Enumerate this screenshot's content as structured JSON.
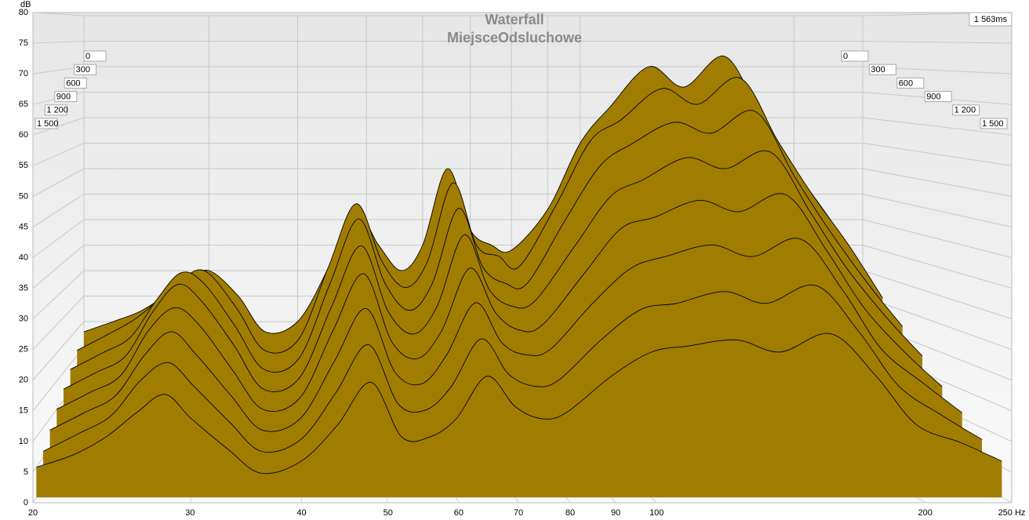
{
  "chart_data": {
    "type": "waterfall",
    "title": "Waterfall",
    "subtitle": "MiejsceOdsluchowe",
    "y_label": "dB",
    "time_label": "1 563ms",
    "color": "#a07d00",
    "log_x": true,
    "grid": true,
    "x": [
      20,
      22,
      24,
      26,
      28,
      30,
      33,
      36,
      40,
      44,
      48,
      52,
      56,
      60,
      65,
      70,
      75,
      80,
      90,
      100,
      110,
      125,
      140,
      160,
      180,
      200,
      225,
      250
    ],
    "xlim": [
      20,
      250
    ],
    "xticks": [
      20,
      30,
      40,
      50,
      60,
      70,
      80,
      90,
      100,
      200,
      {
        "value": 250,
        "label": "250 Hz"
      }
    ],
    "ylim": [
      0,
      80
    ],
    "yticks": [
      0,
      5,
      10,
      15,
      20,
      25,
      30,
      35,
      40,
      45,
      50,
      55,
      60,
      65,
      70,
      75,
      80
    ],
    "zlim": [
      0,
      1500
    ],
    "zticks": [
      0,
      300,
      600,
      900,
      {
        "value": 1200,
        "label": "1 200"
      },
      {
        "value": 1500,
        "label": "1 500"
      }
    ],
    "series": [
      {
        "time": 0,
        "values": [
          18,
          20,
          22,
          25,
          28,
          30,
          25,
          18,
          20,
          30,
          42,
          35,
          30,
          35,
          50,
          38,
          35,
          34,
          42,
          55,
          62,
          70,
          66,
          72,
          60,
          50,
          40,
          30
        ]
      },
      {
        "time": 200,
        "values": [
          16,
          19,
          22,
          26,
          30,
          31,
          24,
          16,
          18,
          32,
          44,
          33,
          28,
          33,
          48,
          36,
          34,
          32,
          44,
          56,
          60,
          66,
          63,
          68,
          56,
          46,
          36,
          26
        ]
      },
      {
        "time": 400,
        "values": [
          14,
          17,
          20,
          27,
          32,
          30,
          22,
          14,
          16,
          30,
          42,
          30,
          25,
          30,
          44,
          33,
          30,
          30,
          42,
          52,
          56,
          60,
          58,
          62,
          50,
          40,
          30,
          22
        ]
      },
      {
        "time": 600,
        "values": [
          12,
          15,
          18,
          26,
          31,
          28,
          20,
          12,
          14,
          27,
          38,
          26,
          22,
          27,
          40,
          30,
          27,
          28,
          38,
          47,
          50,
          54,
          52,
          55,
          44,
          34,
          25,
          18
        ]
      },
      {
        "time": 800,
        "values": [
          10,
          13,
          16,
          24,
          28,
          25,
          17,
          10,
          12,
          24,
          34,
          22,
          19,
          24,
          35,
          27,
          24,
          25,
          34,
          42,
          44,
          47,
          45,
          48,
          38,
          28,
          20,
          14
        ]
      },
      {
        "time": 1000,
        "values": [
          8,
          11,
          14,
          21,
          25,
          21,
          14,
          8,
          10,
          20,
          29,
          18,
          16,
          21,
          30,
          23,
          21,
          22,
          30,
          36,
          38,
          40,
          38,
          41,
          32,
          22,
          16,
          11
        ]
      },
      {
        "time": 1200,
        "values": [
          6,
          9,
          12,
          18,
          21,
          17,
          11,
          6,
          8,
          16,
          24,
          14,
          13,
          17,
          25,
          19,
          17,
          18,
          25,
          30,
          31,
          33,
          31,
          34,
          26,
          17,
          12,
          8
        ]
      },
      {
        "time": 1400,
        "values": [
          5,
          7,
          10,
          14,
          17,
          13,
          8,
          4,
          6,
          12,
          19,
          10,
          10,
          13,
          20,
          15,
          13,
          14,
          20,
          24,
          25,
          26,
          24,
          27,
          20,
          12,
          9,
          6
        ]
      }
    ]
  }
}
